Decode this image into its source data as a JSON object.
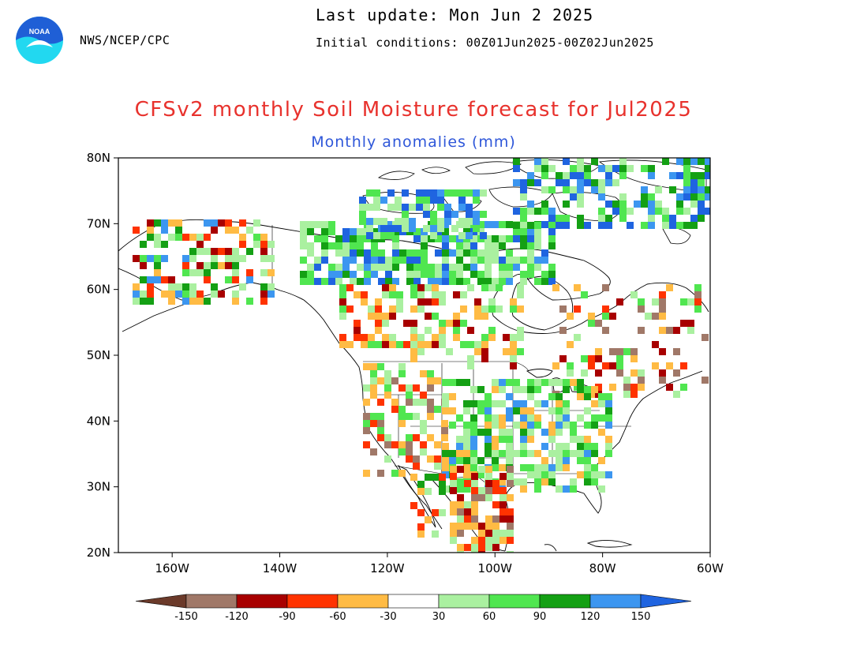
{
  "header": {
    "agency": "NWS/NCEP/CPC",
    "last_update": "Last update: Mon Jun 2 2025",
    "initial_conditions": "Initial conditions: 00Z01Jun2025-00Z02Jun2025",
    "logo_text": "NOAA"
  },
  "map": {
    "title": "CFSv2 monthly Soil Moisture forecast for Jul2025",
    "subtitle": "Monthly anomalies (mm)",
    "lon_range": [
      -170,
      -60
    ],
    "lat_range": [
      20,
      80
    ],
    "lat_ticks": [
      {
        "value": 80,
        "label": "80N"
      },
      {
        "value": 70,
        "label": "70N"
      },
      {
        "value": 60,
        "label": "60N"
      },
      {
        "value": 50,
        "label": "50N"
      },
      {
        "value": 40,
        "label": "40N"
      },
      {
        "value": 30,
        "label": "30N"
      },
      {
        "value": 20,
        "label": "20N"
      }
    ],
    "lon_ticks": [
      {
        "value": -160,
        "label": "160W"
      },
      {
        "value": -140,
        "label": "140W"
      },
      {
        "value": -120,
        "label": "120W"
      },
      {
        "value": -100,
        "label": "100W"
      },
      {
        "value": -80,
        "label": "80W"
      },
      {
        "value": -60,
        "label": "60W"
      }
    ]
  },
  "legend": {
    "label_values": [
      "-150",
      "-120",
      "-90",
      "-60",
      "-30",
      "30",
      "60",
      "90",
      "120",
      "150"
    ],
    "colors": [
      "#6b3a2a",
      "#a07868",
      "#a80000",
      "#ff3300",
      "#ffbb44",
      "#ffffff",
      "#aaf0a0",
      "#50e650",
      "#14a014",
      "#3c96f0",
      "#1f64e0"
    ]
  },
  "colors": {
    "title": "#e8322d",
    "subtitle": "#2f57d9",
    "noaa_blue": "#1f5fd6",
    "noaa_cyan": "#22d8f0"
  }
}
